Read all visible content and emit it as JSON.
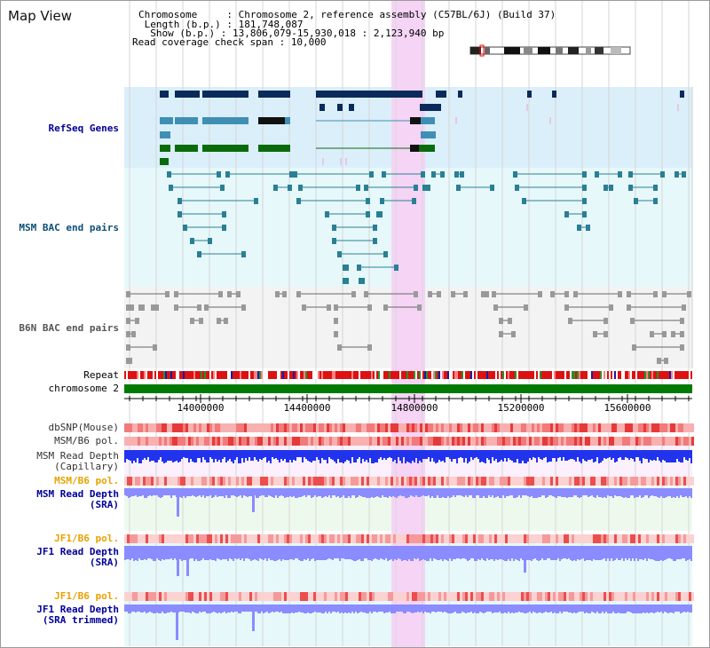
{
  "title": "Map View",
  "info": {
    "chromosome_key": "Chromosome     : ",
    "chromosome_val": "Chromosome 2, reference assembly (C57BL/6J) (Build 37)",
    "length_key": " Length (b.p.) : ",
    "length_val": "181,748,087",
    "show_key": "  Show (b.p.) : ",
    "show_val": "13,806,079-15,930,018 : 2,123,940 bp",
    "span_key": "Read coverage check span : ",
    "span_val": "10,000"
  },
  "tracks": {
    "refseq": "RefSeq Genes",
    "msm_bac": "MSM BAC end pairs",
    "b6n_bac": "B6N BAC end pairs",
    "repeat": "Repeat",
    "chromosome": "chromosome 2",
    "dbsnp": "dbSNP(Mouse)",
    "msm_b6_pol_1": "MSM/B6 pol.",
    "msm_depth_cap_1": "MSM Read Depth",
    "msm_depth_cap_2": "(Capillary)",
    "msm_b6_pol_2": "MSM/B6 pol.",
    "msm_depth_sra_1": "MSM Read Depth",
    "msm_depth_sra_2": "(SRA)",
    "jf1_b6_pol_1": "JF1/B6 pol.",
    "jf1_depth_sra_1": "JF1 Read Depth",
    "jf1_depth_sra_2": "(SRA)",
    "jf1_b6_pol_2": "JF1/B6 pol.",
    "jf1_depth_trim_1": "JF1 Read Depth",
    "jf1_depth_trim_2": "(SRA trimmed)"
  },
  "axis_ticks": [
    "14000000",
    "14400000",
    "14800000",
    "15200000",
    "15600000"
  ],
  "colors": {
    "refseq_bg": "#dbeffa",
    "bac_bg": "#e6f8fa",
    "b6n_bg": "#f3f3f3",
    "highlight": "#f5d4f5",
    "chromosome": "#007a00",
    "navy": "#0b2a5c",
    "steel": "#3f8fb5",
    "green": "#0a6b0a",
    "teal": "#2a7f95",
    "grey": "#777777",
    "depth_dark": "#2233ee",
    "depth_light": "#8a8cff",
    "label_navy": "#000099",
    "label_orange": "#e8a200",
    "label_msm_bac": "#0b4f7a",
    "label_b6n": "#555555"
  }
}
